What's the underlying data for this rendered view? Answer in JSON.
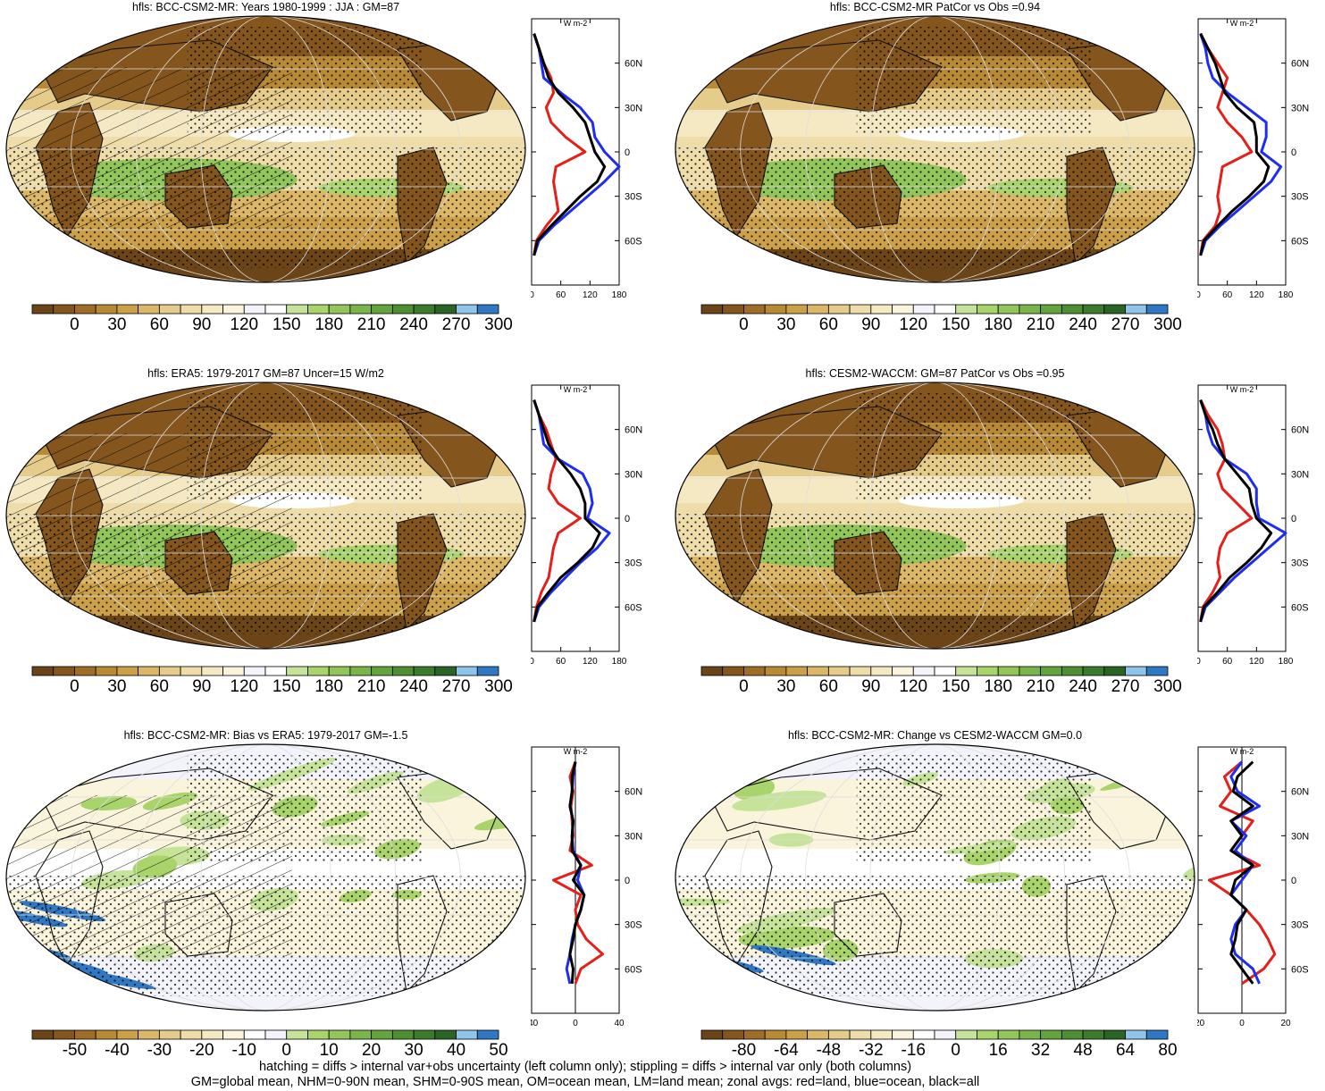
{
  "panels": [
    {
      "id": "p1",
      "title": "hfls: BCC-CSM2-MR: Years 1980-1999 : JJA : GM=87",
      "scale": "abs",
      "hatch": true,
      "zonal": {
        "xticks": [
          "0",
          "60",
          "120",
          "180"
        ],
        "xmin": 0,
        "xmax": 180,
        "unit": "W m-2",
        "yticks": [
          "60N",
          "30N",
          "0",
          "30S",
          "60S"
        ]
      }
    },
    {
      "id": "p2",
      "title": "hfls: BCC-CSM2-MR PatCor vs Obs =0.94",
      "scale": "abs",
      "hatch": false,
      "zonal": {
        "xticks": [
          "0",
          "60",
          "120",
          "180"
        ],
        "xmin": 0,
        "xmax": 180,
        "unit": "W m-2",
        "yticks": [
          "60N",
          "30N",
          "0",
          "30S",
          "60S"
        ]
      }
    },
    {
      "id": "p3",
      "title": "hfls: ERA5: 1979-2017 GM=87 Uncer=15 W/m2",
      "scale": "abs",
      "hatch": true,
      "zonal": {
        "xticks": [
          "0",
          "60",
          "120",
          "180"
        ],
        "xmin": 0,
        "xmax": 180,
        "unit": "W m-2",
        "yticks": [
          "60N",
          "30N",
          "0",
          "30S",
          "60S"
        ]
      }
    },
    {
      "id": "p4",
      "title": "hfls: CESM2-WACCM: GM=87 PatCor vs Obs =0.95",
      "scale": "abs",
      "hatch": false,
      "zonal": {
        "xticks": [
          "0",
          "60",
          "120",
          "180"
        ],
        "xmin": 0,
        "xmax": 180,
        "unit": "W m-2",
        "yticks": [
          "60N",
          "30N",
          "0",
          "30S",
          "60S"
        ]
      }
    },
    {
      "id": "p5",
      "title": "hfls: BCC-CSM2-MR: Bias vs ERA5: 1979-2017 GM=-1.5",
      "scale": "bias",
      "hatch": true,
      "zonal": {
        "xticks": [
          "-40",
          "0",
          "40"
        ],
        "xmin": -40,
        "xmax": 40,
        "unit": "W m-2",
        "yticks": [
          "60N",
          "30N",
          "0",
          "30S",
          "60S"
        ]
      }
    },
    {
      "id": "p6",
      "title": "hfls: BCC-CSM2-MR: Change vs CESM2-WACCM GM=0.0",
      "scale": "change",
      "hatch": false,
      "zonal": {
        "xticks": [
          "-20",
          "0",
          "20"
        ],
        "xmin": -20,
        "xmax": 20,
        "unit": "W m-2",
        "yticks": [
          "60N",
          "30N",
          "0",
          "30S",
          "60S"
        ]
      }
    }
  ],
  "colorbars": {
    "abs_labels": [
      "0",
      "30",
      "60",
      "90",
      "120",
      "150",
      "180",
      "210",
      "240",
      "270",
      "300"
    ],
    "bias_labels": [
      "-50",
      "-40",
      "-30",
      "-20",
      "-10",
      "0",
      "10",
      "20",
      "30",
      "40",
      "50"
    ],
    "change_labels": [
      "-80",
      "-64",
      "-48",
      "-32",
      "-16",
      "0",
      "16",
      "32",
      "48",
      "64",
      "80"
    ],
    "abs_colors": [
      "#6b4418",
      "#84561e",
      "#a06d28",
      "#b98a35",
      "#cba048",
      "#dbb767",
      "#e6cc8a",
      "#efdda9",
      "#f5e9c3",
      "#faf4dc",
      "#f3f3fb",
      "#ffffff",
      "#c6e39a",
      "#a9d36b",
      "#92c55a",
      "#7bb44b",
      "#64a33d",
      "#4f8f34",
      "#3c7a2c",
      "#2a6526",
      "#8fc5ea",
      "#2f78c4"
    ],
    "bias_colors": [
      "#6b4418",
      "#84561e",
      "#a06d28",
      "#b98a35",
      "#cba048",
      "#dbb767",
      "#e6cc8a",
      "#efdda9",
      "#f5e9c3",
      "#faf4dc",
      "#ffffff",
      "#f3f3fb",
      "#c6e39a",
      "#a9d36b",
      "#92c55a",
      "#7bb44b",
      "#64a33d",
      "#4f8f34",
      "#3c7a2c",
      "#2a6526",
      "#8fc5ea",
      "#2f78c4"
    ]
  },
  "footer": {
    "line1": "hatching = diffs > internal var+obs uncertainty (left column only); stippling = diffs > internal var only (both columns)",
    "line2": "GM=global mean, NHM=0-90N mean, SHM=0-90S mean, OM=ocean mean, LM=land mean; zonal avgs: red=land, blue=ocean, black=all"
  },
  "chart_data": [
    {
      "type": "heatmap",
      "title": "hfls: BCC-CSM2-MR: Years 1980-1999 : JJA : GM=87",
      "colorbar_ticks": [
        0,
        30,
        60,
        90,
        120,
        150,
        180,
        210,
        240,
        270,
        300
      ],
      "zonal_mean": {
        "type": "line",
        "xlim": [
          0,
          180
        ],
        "lat": [
          80,
          70,
          60,
          50,
          40,
          30,
          20,
          10,
          0,
          -10,
          -20,
          -30,
          -40,
          -50,
          -60,
          -70
        ],
        "series": [
          {
            "name": "red=land",
            "values": [
              5,
              15,
              25,
              40,
              45,
              30,
              40,
              70,
              110,
              50,
              45,
              50,
              55,
              30,
              10,
              5
            ]
          },
          {
            "name": "blue=ocean",
            "values": [
              5,
              15,
              20,
              25,
              60,
              100,
              125,
              130,
              150,
              180,
              150,
              115,
              80,
              45,
              15,
              5
            ]
          },
          {
            "name": "black=all",
            "values": [
              5,
              15,
              25,
              35,
              55,
              85,
              110,
              120,
              130,
              150,
              135,
              100,
              70,
              40,
              12,
              5
            ]
          }
        ]
      }
    },
    {
      "type": "heatmap",
      "title": "hfls: BCC-CSM2-MR PatCor vs Obs =0.94",
      "colorbar_ticks": [
        0,
        30,
        60,
        90,
        120,
        150,
        180,
        210,
        240,
        270,
        300
      ],
      "zonal_mean": {
        "type": "line",
        "xlim": [
          0,
          180
        ],
        "lat": [
          80,
          70,
          60,
          50,
          40,
          30,
          20,
          10,
          0,
          -10,
          -20,
          -30,
          -40,
          -50,
          -60,
          -70
        ],
        "series": [
          {
            "name": "red=land",
            "values": [
              5,
              20,
              40,
              60,
              50,
              40,
              60,
              90,
              110,
              50,
              45,
              40,
              45,
              35,
              10,
              5
            ]
          },
          {
            "name": "blue=ocean",
            "values": [
              5,
              15,
              20,
              30,
              60,
              100,
              140,
              140,
              130,
              170,
              150,
              115,
              80,
              45,
              15,
              5
            ]
          },
          {
            "name": "black=all",
            "values": [
              5,
              20,
              35,
              45,
              55,
              80,
              115,
              120,
              120,
              145,
              135,
              105,
              70,
              40,
              12,
              5
            ]
          }
        ]
      }
    },
    {
      "type": "heatmap",
      "title": "hfls: ERA5: 1979-2017 GM=87 Uncer=15 W/m2",
      "colorbar_ticks": [
        0,
        30,
        60,
        90,
        120,
        150,
        180,
        210,
        240,
        270,
        300
      ],
      "zonal_mean": {
        "type": "line",
        "xlim": [
          0,
          180
        ],
        "lat": [
          80,
          70,
          60,
          50,
          40,
          30,
          20,
          10,
          0,
          -10,
          -20,
          -30,
          -40,
          -50,
          -60,
          -70
        ],
        "series": [
          {
            "name": "red=land",
            "values": [
              5,
              15,
              30,
              40,
              50,
              40,
              35,
              55,
              100,
              55,
              45,
              40,
              35,
              20,
              10,
              5
            ]
          },
          {
            "name": "blue=ocean",
            "values": [
              5,
              15,
              20,
              25,
              55,
              105,
              120,
              125,
              115,
              160,
              135,
              100,
              70,
              40,
              15,
              5
            ]
          },
          {
            "name": "black=all",
            "values": [
              5,
              15,
              25,
              35,
              55,
              80,
              100,
              110,
              110,
              140,
              125,
              95,
              60,
              35,
              12,
              5
            ]
          }
        ]
      }
    },
    {
      "type": "heatmap",
      "title": "hfls: CESM2-WACCM: GM=87 PatCor vs Obs =0.95",
      "colorbar_ticks": [
        0,
        30,
        60,
        90,
        120,
        150,
        180,
        210,
        240,
        270,
        300
      ],
      "zonal_mean": {
        "type": "line",
        "xlim": [
          0,
          180
        ],
        "lat": [
          80,
          70,
          60,
          50,
          40,
          30,
          20,
          10,
          0,
          -10,
          -20,
          -30,
          -40,
          -50,
          -60,
          -70
        ],
        "series": [
          {
            "name": "red=land",
            "values": [
              5,
              20,
              40,
              50,
              55,
              40,
              50,
              80,
              110,
              60,
              45,
              40,
              45,
              30,
              10,
              5
            ]
          },
          {
            "name": "blue=ocean",
            "values": [
              5,
              15,
              20,
              30,
              55,
              100,
              120,
              120,
              125,
              180,
              145,
              110,
              75,
              45,
              15,
              5
            ]
          },
          {
            "name": "black=all",
            "values": [
              5,
              15,
              30,
              40,
              55,
              80,
              105,
              110,
              120,
              150,
              130,
              100,
              65,
              40,
              12,
              5
            ]
          }
        ]
      }
    },
    {
      "type": "heatmap",
      "title": "hfls: BCC-CSM2-MR: Bias vs ERA5: 1979-2017 GM=-1.5",
      "colorbar_ticks": [
        -50,
        -40,
        -30,
        -20,
        -10,
        0,
        10,
        20,
        30,
        40,
        50
      ],
      "zonal_mean": {
        "type": "line",
        "xlim": [
          -40,
          40
        ],
        "lat": [
          80,
          70,
          60,
          50,
          40,
          30,
          20,
          10,
          0,
          -10,
          -20,
          -30,
          -40,
          -50,
          -60,
          -70
        ],
        "series": [
          {
            "name": "red=land",
            "values": [
              0,
              -5,
              -2,
              -4,
              -3,
              -2,
              -5,
              15,
              -20,
              5,
              0,
              2,
              10,
              25,
              5,
              0
            ]
          },
          {
            "name": "blue=ocean",
            "values": [
              0,
              -2,
              -3,
              -5,
              -2,
              -3,
              -2,
              5,
              2,
              8,
              5,
              0,
              -3,
              -5,
              -8,
              -5
            ]
          },
          {
            "name": "black=all",
            "values": [
              0,
              -3,
              -3,
              -5,
              -2,
              -3,
              -3,
              5,
              -2,
              8,
              5,
              0,
              -2,
              -5,
              -2,
              -3
            ]
          }
        ]
      }
    },
    {
      "type": "heatmap",
      "title": "hfls: BCC-CSM2-MR: Change vs CESM2-WACCM GM=0.0",
      "colorbar_ticks": [
        -80,
        -64,
        -48,
        -32,
        -16,
        0,
        16,
        32,
        48,
        64,
        80
      ],
      "zonal_mean": {
        "type": "line",
        "xlim": [
          -20,
          20
        ],
        "lat": [
          80,
          70,
          60,
          50,
          40,
          30,
          20,
          10,
          0,
          -10,
          -20,
          -30,
          -40,
          -50,
          -60,
          -70
        ],
        "series": [
          {
            "name": "red=land",
            "values": [
              0,
              -8,
              -5,
              -10,
              5,
              0,
              -5,
              8,
              -15,
              -5,
              2,
              8,
              12,
              15,
              10,
              0
            ]
          },
          {
            "name": "blue=ocean",
            "values": [
              0,
              -5,
              -2,
              8,
              -5,
              2,
              -3,
              5,
              0,
              -5,
              2,
              -3,
              -5,
              -3,
              5,
              8
            ]
          },
          {
            "name": "black=all",
            "values": [
              5,
              -2,
              -4,
              5,
              -5,
              0,
              -5,
              5,
              -3,
              -5,
              2,
              -2,
              -3,
              -5,
              0,
              5
            ]
          }
        ]
      }
    }
  ]
}
